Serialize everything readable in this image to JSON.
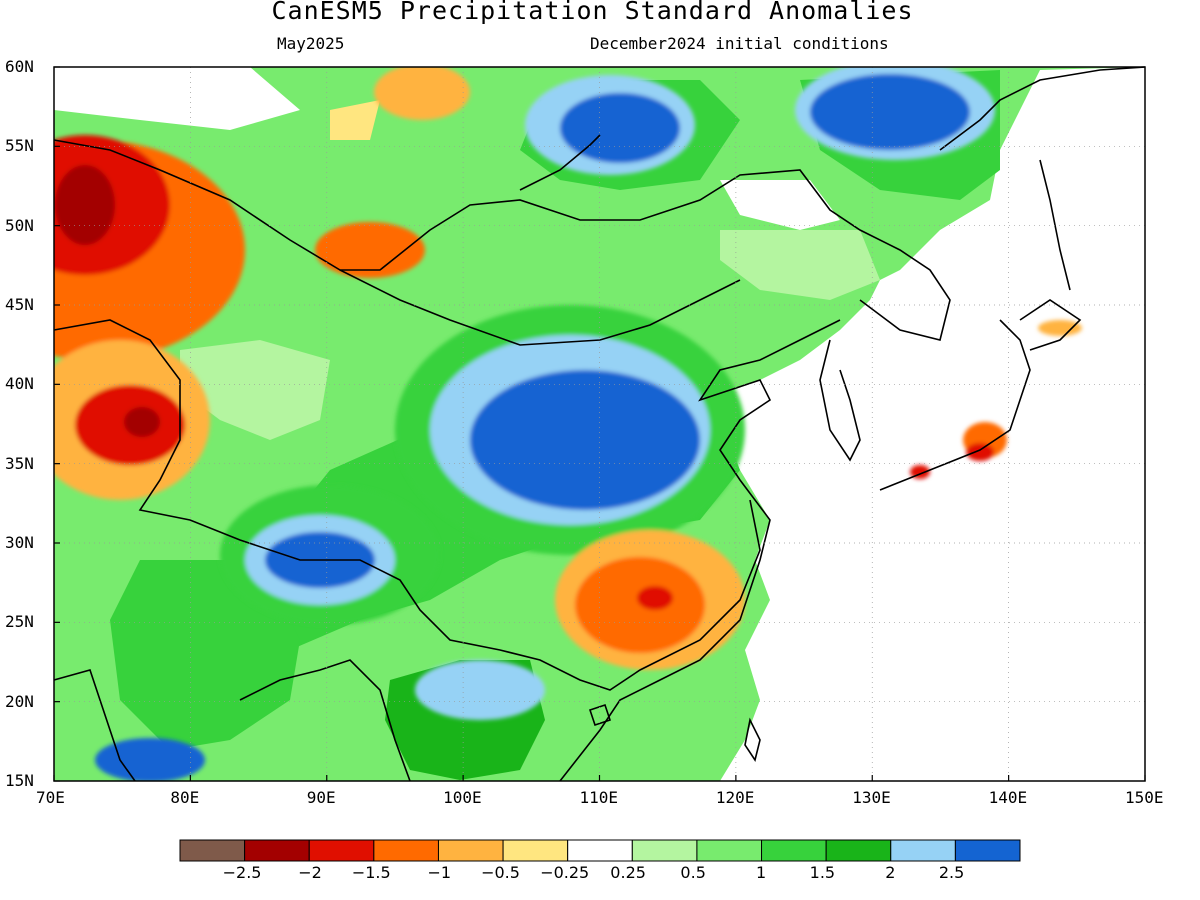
{
  "title": "CanESM5 Precipitation Standard Anomalies",
  "subtitle_left": "May2025",
  "subtitle_right": "December2024 initial conditions",
  "map": {
    "lon_range": [
      70,
      150
    ],
    "lat_range": [
      15,
      60
    ],
    "x_ticks": [
      "70E",
      "80E",
      "90E",
      "100E",
      "110E",
      "120E",
      "130E",
      "140E",
      "150E"
    ],
    "y_ticks": [
      "60N",
      "55N",
      "50N",
      "45N",
      "40N",
      "35N",
      "30N",
      "25N",
      "20N",
      "15N"
    ]
  },
  "colorbar": {
    "colors": [
      "#7f5a4a",
      "#a30000",
      "#e00f00",
      "#ff6a00",
      "#ffb340",
      "#ffe680",
      "#ffffff",
      "#b4f5a0",
      "#78eb6e",
      "#37d23c",
      "#19b419",
      "#96d2f5",
      "#1464d2"
    ],
    "labels": [
      "−2.5",
      "−2",
      "−1.5",
      "−1",
      "−0.5",
      "−0.25",
      "0.25",
      "0.5",
      "1",
      "1.5",
      "2",
      "2.5"
    ]
  },
  "regions": [
    {
      "name": "west-central-asia-dry",
      "level": 3,
      "cx": 95,
      "cy": 250,
      "rx": 150,
      "ry": 110
    },
    {
      "name": "kazakh-dry-core",
      "level": 2,
      "cx": 85,
      "cy": 205,
      "rx": 85,
      "ry": 70
    },
    {
      "name": "kazakh-dry-peak",
      "level": 1,
      "cx": 85,
      "cy": 205,
      "rx": 30,
      "ry": 40
    },
    {
      "name": "balkhash-dry",
      "level": 3,
      "cx": 370,
      "cy": 250,
      "rx": 55,
      "ry": 28
    },
    {
      "name": "tarim-west-dry",
      "level": 4,
      "cx": 120,
      "cy": 420,
      "rx": 90,
      "ry": 80
    },
    {
      "name": "pamir-dry-core",
      "level": 2,
      "cx": 130,
      "cy": 425,
      "rx": 55,
      "ry": 40
    },
    {
      "name": "pamir-dry-peak",
      "level": 1,
      "cx": 142,
      "cy": 422,
      "rx": 18,
      "ry": 15
    },
    {
      "name": "sayan-dry",
      "level": 4,
      "cx": 422,
      "cy": 92,
      "rx": 48,
      "ry": 28
    },
    {
      "name": "north-china-wet",
      "level": 9,
      "cx": 570,
      "cy": 430,
      "rx": 175,
      "ry": 125
    },
    {
      "name": "north-china-wet-core",
      "level": 11,
      "cx": 570,
      "cy": 430,
      "rx": 140,
      "ry": 95
    },
    {
      "name": "north-china-wet-peak",
      "level": 12,
      "cx": 585,
      "cy": 440,
      "rx": 115,
      "ry": 70
    },
    {
      "name": "tibet-wet",
      "level": 9,
      "cx": 330,
      "cy": 555,
      "rx": 110,
      "ry": 70
    },
    {
      "name": "tibet-wet-core",
      "level": 11,
      "cx": 320,
      "cy": 560,
      "rx": 75,
      "ry": 45
    },
    {
      "name": "tibet-wet-peak",
      "level": 12,
      "cx": 320,
      "cy": 560,
      "rx": 55,
      "ry": 28
    },
    {
      "name": "baikal-wet",
      "level": 11,
      "cx": 610,
      "cy": 125,
      "rx": 85,
      "ry": 50
    },
    {
      "name": "baikal-wet-peak",
      "level": 12,
      "cx": 620,
      "cy": 128,
      "rx": 60,
      "ry": 35
    },
    {
      "name": "okhotsk-wet",
      "level": 11,
      "cx": 895,
      "cy": 110,
      "rx": 100,
      "ry": 50
    },
    {
      "name": "okhotsk-wet-peak",
      "level": 12,
      "cx": 890,
      "cy": 112,
      "rx": 80,
      "ry": 38
    },
    {
      "name": "indochina-wet",
      "level": 11,
      "cx": 480,
      "cy": 690,
      "rx": 65,
      "ry": 30
    },
    {
      "name": "india-south-wet",
      "level": 12,
      "cx": 150,
      "cy": 760,
      "rx": 55,
      "ry": 22
    },
    {
      "name": "south-china-dry",
      "level": 4,
      "cx": 650,
      "cy": 600,
      "rx": 95,
      "ry": 70
    },
    {
      "name": "south-china-dry-core",
      "level": 3,
      "cx": 640,
      "cy": 605,
      "rx": 65,
      "ry": 48
    },
    {
      "name": "south-china-dry-peak",
      "level": 2,
      "cx": 655,
      "cy": 598,
      "rx": 18,
      "ry": 12
    },
    {
      "name": "japan-dry",
      "level": 3,
      "cx": 985,
      "cy": 440,
      "rx": 22,
      "ry": 18
    },
    {
      "name": "japan-dry-peak",
      "level": 2,
      "cx": 980,
      "cy": 452,
      "rx": 14,
      "ry": 9
    },
    {
      "name": "hokkaido-dry",
      "level": 4,
      "cx": 1060,
      "cy": 328,
      "rx": 22,
      "ry": 8
    },
    {
      "name": "shikoku-dry",
      "level": 2,
      "cx": 920,
      "cy": 472,
      "rx": 10,
      "ry": 7
    }
  ]
}
